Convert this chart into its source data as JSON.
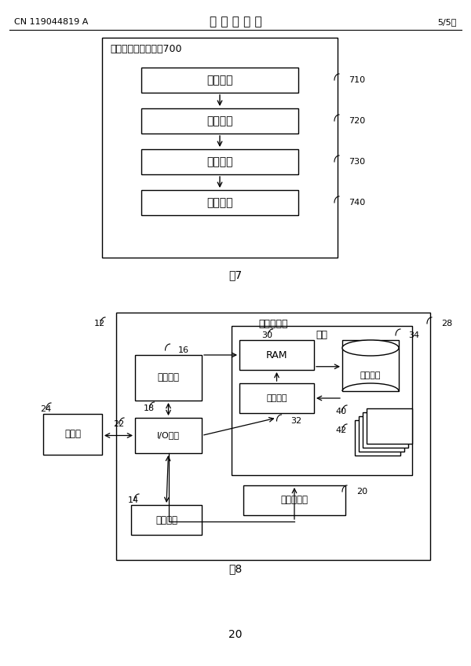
{
  "bg_color": "#ffffff",
  "header_left": "CN 119044819 A",
  "header_center": "说 明 书 附 图",
  "header_right": "5/5页",
  "fig7_title": "芯片引脚的测试装罰700",
  "fig7_label": "图7",
  "fig7_boxes": [
    "确定模块",
    "配置模块",
    "读取模块",
    "判断模块"
  ],
  "fig7_ids": [
    "710",
    "720",
    "730",
    "740"
  ],
  "fig8_label": "图8",
  "fig8_outer_label": "计算机设备",
  "fig8_memory_label": "内存",
  "fig8_ram": "RAM",
  "fig8_cache": "高速缓存",
  "fig8_storage": "存储系统",
  "fig8_pu": "处理单元",
  "fig8_io": "I/O接口",
  "fig8_display": "显示器",
  "fig8_ext": "外部设备",
  "fig8_net": "网络适配器",
  "page_number": "20"
}
